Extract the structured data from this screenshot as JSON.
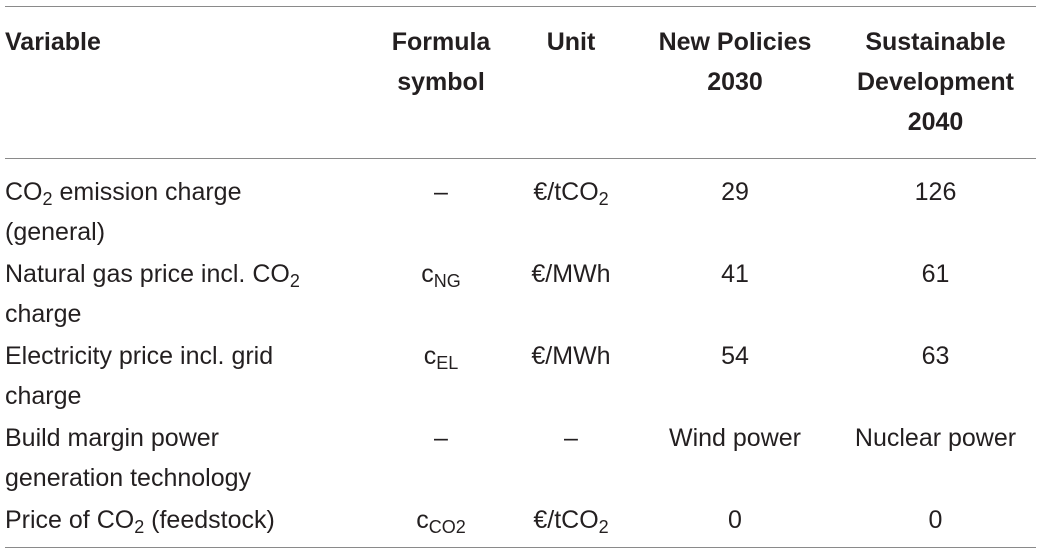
{
  "table": {
    "headers": {
      "variable": "Variable",
      "formula_symbol_line1": "Formula",
      "formula_symbol_line2": "symbol",
      "unit": "Unit",
      "new_policies_line1": "New Policies",
      "new_policies_line2": "2030",
      "sustainable_line1": "Sustainable",
      "sustainable_line2": "Development",
      "sustainable_line3": "2040"
    },
    "rows": [
      {
        "variable_pre": "CO",
        "variable_sub": "2",
        "variable_post": " emission charge",
        "variable_line2": "(general)",
        "symbol_main": "–",
        "symbol_sub": "",
        "unit_main": "€/tCO",
        "unit_sub": "2",
        "new_policies": "29",
        "sustainable": "126"
      },
      {
        "variable_pre": "Natural gas price incl. CO",
        "variable_sub": "2",
        "variable_post": "",
        "variable_line2": "charge",
        "symbol_main": "c",
        "symbol_sub": "NG",
        "unit_main": "€/MWh",
        "unit_sub": "",
        "new_policies": "41",
        "sustainable": "61"
      },
      {
        "variable_pre": "Electricity price incl. grid",
        "variable_sub": "",
        "variable_post": "",
        "variable_line2": "charge",
        "symbol_main": "c",
        "symbol_sub": "EL",
        "unit_main": "€/MWh",
        "unit_sub": "",
        "new_policies": "54",
        "sustainable": "63"
      },
      {
        "variable_pre": "Build margin power",
        "variable_sub": "",
        "variable_post": "",
        "variable_line2": "generation technology",
        "symbol_main": "–",
        "symbol_sub": "",
        "unit_main": "–",
        "unit_sub": "",
        "new_policies": "Wind power",
        "sustainable": "Nuclear power"
      },
      {
        "variable_pre": "Price of CO",
        "variable_sub": "2",
        "variable_post": " (feedstock)",
        "variable_line2": "",
        "symbol_main": "c",
        "symbol_sub": "CO2",
        "unit_main": "€/tCO",
        "unit_sub": "2",
        "new_policies": "0",
        "sustainable": "0"
      }
    ]
  }
}
